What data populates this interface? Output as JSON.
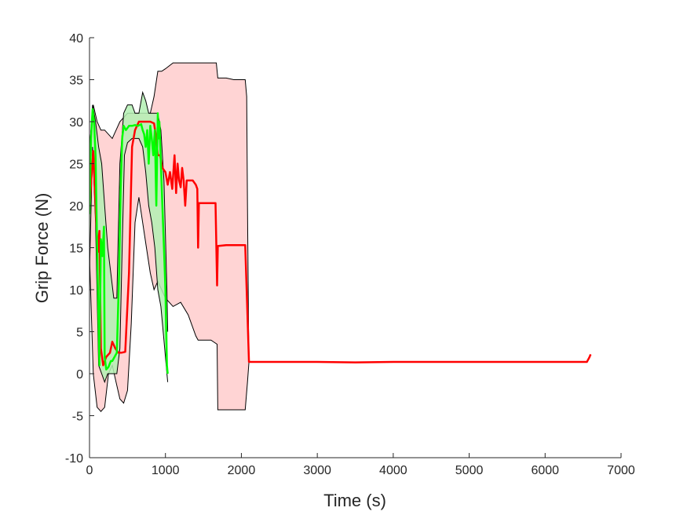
{
  "chart_data": {
    "type": "line",
    "title": "",
    "xlabel": "Time (s)",
    "ylabel": "Grip Force (N)",
    "xlim": [
      0,
      7000
    ],
    "ylim": [
      -10,
      40
    ],
    "xticks": [
      "0",
      "1000",
      "2000",
      "3000",
      "4000",
      "5000",
      "6000",
      "7000"
    ],
    "yticks": [
      "-10",
      "-5",
      "0",
      "5",
      "10",
      "15",
      "20",
      "25",
      "30",
      "35",
      "40"
    ],
    "grid": false,
    "legend": "none",
    "colors": {
      "red": "#ff0000",
      "red_band": "#ffcccc",
      "green": "#00ff00",
      "green_band": "#b3f0b3",
      "band_edge": "#000000"
    },
    "series": [
      {
        "color": "red",
        "mean": [
          [
            0,
            20
          ],
          [
            50,
            26.5
          ],
          [
            90,
            18
          ],
          [
            110,
            14.5
          ],
          [
            130,
            17
          ],
          [
            150,
            3
          ],
          [
            180,
            1
          ],
          [
            220,
            2
          ],
          [
            270,
            2.5
          ],
          [
            300,
            3.8
          ],
          [
            340,
            3
          ],
          [
            380,
            2.5
          ],
          [
            420,
            2.5
          ],
          [
            470,
            2.6
          ],
          [
            520,
            12
          ],
          [
            560,
            27
          ],
          [
            600,
            29
          ],
          [
            650,
            30
          ],
          [
            700,
            30
          ],
          [
            750,
            30
          ],
          [
            800,
            30
          ],
          [
            850,
            29.8
          ],
          [
            880,
            28
          ],
          [
            900,
            26
          ],
          [
            930,
            26
          ],
          [
            960,
            24.5
          ],
          [
            1000,
            24
          ],
          [
            1030,
            22.5
          ],
          [
            1060,
            24
          ],
          [
            1090,
            22
          ],
          [
            1120,
            26
          ],
          [
            1140,
            21.5
          ],
          [
            1160,
            25
          ],
          [
            1180,
            23
          ],
          [
            1200,
            22.2
          ],
          [
            1220,
            24.5
          ],
          [
            1240,
            23
          ],
          [
            1260,
            20
          ],
          [
            1280,
            23
          ],
          [
            1300,
            23
          ],
          [
            1340,
            23
          ],
          [
            1360,
            23
          ],
          [
            1400,
            22.5
          ],
          [
            1420,
            22
          ],
          [
            1430,
            15
          ],
          [
            1440,
            20.3
          ],
          [
            1500,
            20.3
          ],
          [
            1600,
            20.3
          ],
          [
            1660,
            20.3
          ],
          [
            1680,
            10.5
          ],
          [
            1690,
            15.2
          ],
          [
            1800,
            15.3
          ],
          [
            1900,
            15.3
          ],
          [
            2050,
            15.3
          ],
          [
            2080,
            7
          ],
          [
            2100,
            1.4
          ],
          [
            2500,
            1.4
          ],
          [
            3000,
            1.4
          ],
          [
            3500,
            1.35
          ],
          [
            4000,
            1.4
          ],
          [
            4500,
            1.4
          ],
          [
            5000,
            1.4
          ],
          [
            5500,
            1.4
          ],
          [
            6000,
            1.4
          ],
          [
            6550,
            1.4
          ],
          [
            6580,
            1.9
          ],
          [
            6600,
            2.3
          ]
        ],
        "upper": [
          [
            0,
            27
          ],
          [
            50,
            32
          ],
          [
            100,
            30
          ],
          [
            150,
            29
          ],
          [
            200,
            29
          ],
          [
            300,
            28
          ],
          [
            400,
            30
          ],
          [
            500,
            31
          ],
          [
            600,
            31
          ],
          [
            700,
            31
          ],
          [
            800,
            31
          ],
          [
            850,
            33
          ],
          [
            900,
            36
          ],
          [
            950,
            36
          ],
          [
            1000,
            36.3
          ],
          [
            1100,
            37
          ],
          [
            1200,
            37
          ],
          [
            1300,
            37
          ],
          [
            1400,
            37
          ],
          [
            1500,
            37
          ],
          [
            1600,
            37
          ],
          [
            1670,
            37
          ],
          [
            1690,
            35.2
          ],
          [
            1800,
            35.2
          ],
          [
            1900,
            35
          ],
          [
            2000,
            35
          ],
          [
            2050,
            35
          ],
          [
            2070,
            33
          ],
          [
            2080,
            20
          ],
          [
            2095,
            5
          ],
          [
            2100,
            1.4
          ]
        ],
        "lower": [
          [
            0,
            14
          ],
          [
            50,
            0
          ],
          [
            100,
            -4
          ],
          [
            150,
            -4.5
          ],
          [
            200,
            -4
          ],
          [
            250,
            0
          ],
          [
            300,
            1
          ],
          [
            350,
            -1
          ],
          [
            400,
            -3
          ],
          [
            450,
            -3.5
          ],
          [
            500,
            -2
          ],
          [
            550,
            6
          ],
          [
            600,
            18
          ],
          [
            650,
            21
          ],
          [
            700,
            18
          ],
          [
            750,
            15
          ],
          [
            800,
            12
          ],
          [
            850,
            10
          ],
          [
            900,
            11
          ],
          [
            1000,
            9
          ],
          [
            1100,
            8
          ],
          [
            1200,
            8.5
          ],
          [
            1300,
            7
          ],
          [
            1400,
            4.5
          ],
          [
            1430,
            4
          ],
          [
            1450,
            4
          ],
          [
            1500,
            4
          ],
          [
            1600,
            4
          ],
          [
            1680,
            3.5
          ],
          [
            1690,
            -4.3
          ],
          [
            1800,
            -4.3
          ],
          [
            1900,
            -4.3
          ],
          [
            2000,
            -4.3
          ],
          [
            2050,
            -4.3
          ],
          [
            2080,
            -1
          ],
          [
            2100,
            1.4
          ]
        ]
      },
      {
        "color": "green",
        "mean": [
          [
            0,
            19
          ],
          [
            20,
            28
          ],
          [
            40,
            31.5
          ],
          [
            60,
            30
          ],
          [
            80,
            26
          ],
          [
            100,
            15
          ],
          [
            120,
            6
          ],
          [
            130,
            1
          ],
          [
            150,
            16
          ],
          [
            170,
            14
          ],
          [
            190,
            17.5
          ],
          [
            200,
            2
          ],
          [
            220,
            0.5
          ],
          [
            250,
            0.8
          ],
          [
            280,
            1.5
          ],
          [
            300,
            1.5
          ],
          [
            330,
            2
          ],
          [
            360,
            2.5
          ],
          [
            390,
            12
          ],
          [
            410,
            22
          ],
          [
            430,
            28
          ],
          [
            450,
            29.5
          ],
          [
            480,
            29
          ],
          [
            520,
            29.5
          ],
          [
            560,
            29.5
          ],
          [
            600,
            29.6
          ],
          [
            640,
            29.5
          ],
          [
            680,
            29.7
          ],
          [
            700,
            29
          ],
          [
            720,
            28.5
          ],
          [
            740,
            27
          ],
          [
            760,
            29
          ],
          [
            780,
            25
          ],
          [
            800,
            29.5
          ],
          [
            820,
            28
          ],
          [
            840,
            26
          ],
          [
            860,
            29
          ],
          [
            880,
            20
          ],
          [
            900,
            31
          ],
          [
            910,
            28
          ],
          [
            920,
            30
          ],
          [
            940,
            25
          ],
          [
            960,
            20
          ],
          [
            980,
            15
          ],
          [
            1000,
            10
          ],
          [
            1010,
            5
          ],
          [
            1020,
            1
          ],
          [
            1030,
            0
          ]
        ],
        "upper": [
          [
            0,
            26
          ],
          [
            40,
            32
          ],
          [
            80,
            30
          ],
          [
            120,
            27
          ],
          [
            160,
            25
          ],
          [
            200,
            20
          ],
          [
            240,
            15
          ],
          [
            280,
            12
          ],
          [
            320,
            9
          ],
          [
            360,
            9
          ],
          [
            400,
            25
          ],
          [
            450,
            31
          ],
          [
            500,
            32
          ],
          [
            560,
            32
          ],
          [
            600,
            31
          ],
          [
            650,
            31
          ],
          [
            700,
            33.5
          ],
          [
            740,
            32.5
          ],
          [
            780,
            31
          ],
          [
            820,
            31
          ],
          [
            860,
            31
          ],
          [
            900,
            31
          ],
          [
            940,
            29
          ],
          [
            980,
            23
          ],
          [
            1020,
            10
          ],
          [
            1030,
            5
          ]
        ],
        "lower": [
          [
            0,
            12
          ],
          [
            40,
            27
          ],
          [
            80,
            18
          ],
          [
            120,
            1
          ],
          [
            160,
            0
          ],
          [
            200,
            -1
          ],
          [
            240,
            0
          ],
          [
            280,
            0
          ],
          [
            320,
            0
          ],
          [
            360,
            0
          ],
          [
            400,
            3
          ],
          [
            430,
            15
          ],
          [
            460,
            26
          ],
          [
            500,
            27.5
          ],
          [
            560,
            28
          ],
          [
            600,
            28
          ],
          [
            650,
            28
          ],
          [
            700,
            27
          ],
          [
            740,
            24
          ],
          [
            780,
            20
          ],
          [
            820,
            18
          ],
          [
            860,
            15
          ],
          [
            900,
            10
          ],
          [
            940,
            8
          ],
          [
            980,
            4
          ],
          [
            1020,
            0
          ],
          [
            1030,
            -1
          ]
        ]
      }
    ]
  }
}
